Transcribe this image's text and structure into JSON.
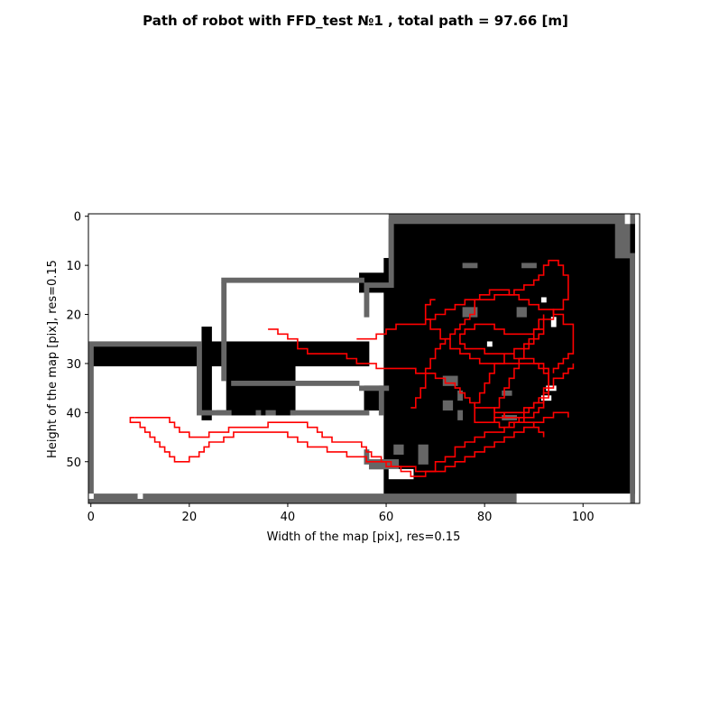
{
  "chart_data": {
    "type": "line",
    "title": "Path of robot with FFD_test №1 , total path = 97.66 [m]",
    "xlabel": "Width of the map [pix], res=0.15",
    "ylabel": "Height of the map [pix], res=0.15",
    "xlim": [
      -0.5,
      111.5
    ],
    "ylim": [
      58.5,
      -0.5
    ],
    "xticks": [
      0,
      20,
      40,
      60,
      80,
      100
    ],
    "yticks": [
      0,
      10,
      20,
      30,
      40,
      50
    ],
    "colors": {
      "free": "#000000",
      "wall": "#666666",
      "unknown": "#ffffff",
      "path": "#ff0000"
    },
    "map_cells": {
      "free": [
        [
          0,
          56,
          1,
          26,
          30
        ],
        [
          23,
          24,
          1,
          23,
          41
        ],
        [
          23,
          24,
          1,
          23,
          40
        ],
        [
          28,
          41,
          1,
          28,
          40
        ],
        [
          56,
          62,
          1,
          35,
          39
        ],
        [
          55,
          60,
          1,
          12,
          15
        ],
        [
          61,
          95,
          1,
          1,
          8
        ],
        [
          96,
          110,
          1,
          1,
          8
        ],
        [
          60,
          100,
          1,
          9,
          56
        ],
        [
          101,
          110,
          1,
          8,
          56
        ],
        [
          95,
          99,
          1,
          1,
          2
        ]
      ],
      "wall": [
        [
          0,
          26,
          23,
          1,
          0
        ],
        [
          0,
          27,
          1,
          31,
          0
        ],
        [
          22,
          27,
          1,
          14,
          0
        ],
        [
          23,
          40,
          5,
          1,
          0
        ],
        [
          27,
          13,
          29,
          1,
          0
        ],
        [
          27,
          14,
          1,
          20,
          0
        ],
        [
          29,
          34,
          26,
          1,
          0
        ],
        [
          56,
          14,
          1,
          7,
          0
        ],
        [
          57,
          14,
          4,
          1,
          0
        ],
        [
          61,
          0,
          1,
          15,
          0
        ],
        [
          62,
          0,
          49,
          2,
          0
        ],
        [
          110,
          8,
          1,
          51,
          0
        ],
        [
          107,
          1,
          3,
          8,
          0
        ],
        [
          0,
          57,
          87,
          2,
          0
        ],
        [
          41,
          40,
          16,
          1,
          0
        ],
        [
          55,
          35,
          6,
          1,
          0
        ],
        [
          59,
          35,
          1,
          6,
          0
        ],
        [
          26,
          40,
          3,
          1,
          0
        ],
        [
          34,
          40,
          1,
          1,
          0
        ],
        [
          36,
          40,
          2,
          1,
          0
        ],
        [
          76,
          10,
          3,
          1,
          0
        ],
        [
          88,
          10,
          3,
          1,
          0
        ],
        [
          76,
          19,
          3,
          2,
          0
        ],
        [
          87,
          19,
          2,
          2,
          0
        ],
        [
          72,
          33,
          3,
          2,
          0
        ],
        [
          72,
          38,
          2,
          2,
          0
        ],
        [
          75,
          40,
          1,
          2,
          0
        ],
        [
          75,
          36,
          1,
          2,
          0
        ],
        [
          84,
          36,
          2,
          1,
          0
        ],
        [
          84,
          41,
          3,
          1,
          0
        ],
        [
          56,
          48,
          1,
          3,
          0
        ],
        [
          57,
          50,
          6,
          2,
          0
        ],
        [
          62,
          47,
          2,
          2,
          0
        ],
        [
          67,
          47,
          2,
          4,
          0
        ]
      ],
      "unknown": [
        [
          0,
          57,
          1,
          1,
          0
        ],
        [
          10,
          57,
          1,
          1,
          0
        ],
        [
          87,
          57,
          23,
          2,
          0
        ],
        [
          92,
          17,
          1,
          1,
          0
        ],
        [
          94,
          21,
          1,
          2,
          0
        ],
        [
          93,
          35,
          2,
          1,
          0
        ],
        [
          92,
          37,
          2,
          1,
          0
        ],
        [
          81,
          26,
          1,
          1,
          0
        ],
        [
          61,
          52,
          5,
          2,
          0
        ],
        [
          109,
          0,
          1,
          2,
          0
        ]
      ]
    },
    "series": [
      {
        "x": [
          9,
          8,
          9,
          10,
          11,
          12,
          13,
          14,
          15,
          16,
          17,
          18,
          20,
          22,
          23,
          24,
          25,
          27,
          29,
          32,
          35,
          38,
          40,
          42,
          44,
          46,
          48,
          50,
          52,
          54,
          56,
          58,
          60,
          62,
          64,
          66,
          68,
          70,
          72,
          74,
          76,
          78,
          80,
          82,
          84,
          86,
          88,
          90,
          92,
          94,
          96,
          97
        ],
        "y": [
          41,
          42,
          42,
          43,
          44,
          45,
          46,
          47,
          48,
          49,
          50,
          50,
          49,
          48,
          47,
          46,
          46,
          45,
          44,
          44,
          44,
          44,
          45,
          46,
          47,
          47,
          48,
          48,
          49,
          49,
          50,
          50,
          51,
          51,
          51,
          52,
          52,
          52,
          51,
          50,
          49,
          48,
          47,
          46,
          45,
          44,
          43,
          42,
          41,
          40,
          40,
          41
        ]
      },
      {
        "x": [
          9,
          12,
          15,
          16,
          17,
          18,
          20,
          22,
          24,
          26,
          28,
          32,
          36,
          40,
          44,
          46,
          47,
          49,
          51,
          53,
          55,
          56,
          57,
          59,
          61,
          63,
          65,
          66,
          67,
          68,
          70,
          72,
          74,
          76,
          78,
          80,
          82,
          84,
          86,
          88,
          90,
          91,
          92,
          93,
          94,
          96,
          97,
          98
        ],
        "y": [
          41,
          41,
          41,
          42,
          43,
          44,
          45,
          45,
          44,
          44,
          43,
          43,
          42,
          42,
          43,
          44,
          45,
          46,
          46,
          46,
          47,
          48,
          49,
          50,
          51,
          52,
          53,
          53,
          53,
          52,
          50,
          49,
          47,
          46,
          45,
          44,
          44,
          43,
          42,
          41,
          40,
          39,
          37,
          35,
          33,
          32,
          31,
          30
        ]
      },
      {
        "x": [
          36,
          38,
          40,
          42,
          44,
          46,
          48,
          50,
          52,
          54,
          56,
          58,
          60,
          62,
          64,
          66,
          68,
          70,
          72,
          74,
          75,
          76,
          77,
          78,
          80,
          82,
          84,
          86,
          88,
          90,
          91,
          92
        ],
        "y": [
          23,
          24,
          25,
          27,
          28,
          28,
          28,
          28,
          29,
          30,
          30,
          31,
          31,
          31,
          31,
          32,
          32,
          33,
          34,
          35,
          36,
          37,
          38,
          39,
          39,
          40,
          41,
          41,
          42,
          43,
          44,
          45
        ]
      },
      {
        "x": [
          54,
          56,
          58,
          60,
          62,
          63,
          64,
          66,
          68,
          70,
          72,
          74,
          76,
          78,
          79,
          80,
          82,
          84,
          86,
          88,
          90,
          91,
          92,
          92,
          93,
          94,
          95,
          96,
          97,
          97,
          96,
          94,
          92,
          90,
          88,
          86,
          84,
          82,
          80,
          79,
          78,
          77,
          76,
          75,
          75,
          76,
          78,
          80,
          82,
          84,
          86,
          88,
          90,
          91,
          92,
          93,
          93,
          92,
          90,
          88,
          86,
          85,
          84,
          83,
          82,
          81,
          80,
          79,
          78,
          78,
          79,
          80,
          81,
          82,
          84,
          86,
          88,
          90,
          91,
          92,
          92
        ],
        "y": [
          25,
          25,
          24,
          23,
          22,
          22,
          22,
          22,
          21,
          20,
          19,
          18,
          17,
          17,
          17,
          17,
          16,
          16,
          15,
          14,
          13,
          12,
          12,
          10,
          9,
          9,
          10,
          12,
          14,
          17,
          19,
          21,
          23,
          24,
          24,
          24,
          23,
          22,
          22,
          22,
          23,
          23,
          24,
          25,
          26,
          27,
          27,
          28,
          28,
          28,
          29,
          29,
          30,
          31,
          32,
          33,
          36,
          38,
          39,
          40,
          40,
          40,
          41,
          41,
          42,
          42,
          42,
          42,
          40,
          38,
          36,
          34,
          32,
          30,
          28,
          27,
          26,
          25,
          24,
          23,
          22
        ]
      },
      {
        "x": [
          70,
          69,
          68,
          68,
          69,
          71,
          73,
          75,
          77,
          79,
          81,
          83,
          85,
          87,
          89,
          91,
          92,
          93,
          93,
          92,
          91,
          90,
          89,
          88,
          87,
          86,
          85,
          84,
          83,
          82,
          82,
          83,
          84,
          85,
          86,
          87,
          88,
          89,
          90,
          91,
          92
        ],
        "y": [
          17,
          18,
          19,
          21,
          23,
          25,
          27,
          28,
          29,
          30,
          30,
          30,
          30,
          30,
          30,
          30,
          31,
          33,
          35,
          37,
          38,
          39,
          40,
          41,
          42,
          42,
          43,
          43,
          42,
          41,
          39,
          37,
          35,
          33,
          31,
          29,
          27,
          25,
          23,
          21,
          20
        ]
      },
      {
        "x": [
          65,
          66,
          67,
          68,
          68,
          69,
          70,
          71,
          72,
          73,
          74,
          75,
          76,
          77,
          78,
          78,
          79,
          81,
          83,
          85,
          87,
          89,
          91,
          94,
          96,
          98,
          98,
          97,
          96,
          95,
          94
        ],
        "y": [
          39,
          37,
          35,
          33,
          31,
          29,
          27,
          26,
          25,
          24,
          23,
          22,
          21,
          20,
          19,
          17,
          16,
          15,
          15,
          16,
          17,
          18,
          19,
          20,
          22,
          24,
          28,
          29,
          30,
          31,
          32
        ]
      }
    ]
  }
}
